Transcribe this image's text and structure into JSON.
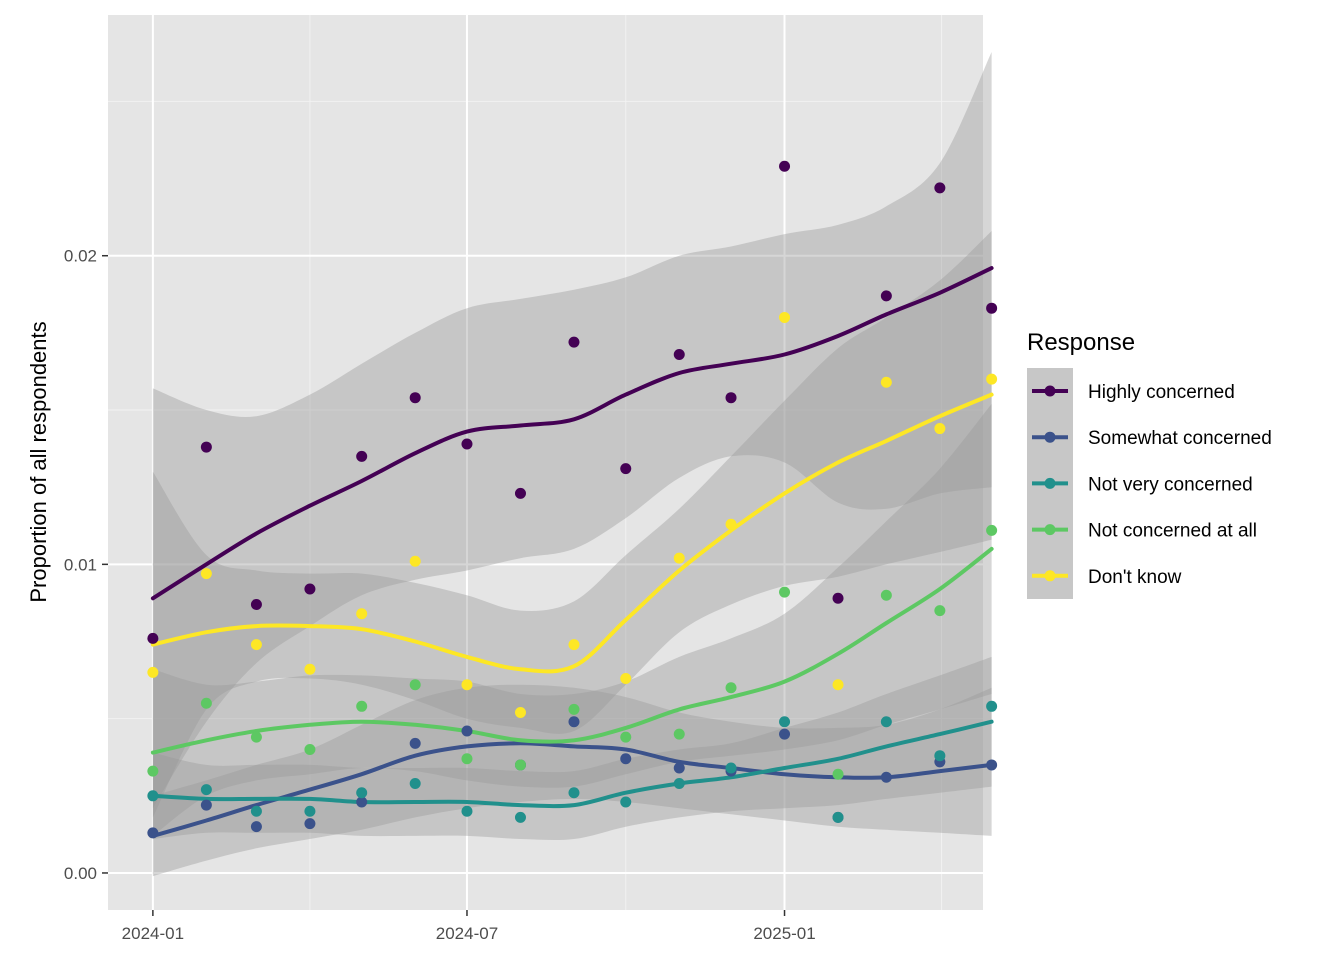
{
  "chart_data": {
    "type": "scatter",
    "title": "",
    "xlabel": "",
    "ylabel": "Proportion of all respondents",
    "x_axis": {
      "type": "date",
      "range": [
        "2023-12-06",
        "2025-04-26"
      ],
      "ticks": [
        "2024-01-01",
        "2024-07-01",
        "2025-01-01"
      ],
      "tick_labels": [
        "2024-01",
        "2024-07",
        "2025-01"
      ]
    },
    "y_axis": {
      "range": [
        -0.0012,
        0.0278
      ],
      "ticks": [
        0,
        0.01,
        0.02
      ],
      "tick_labels": [
        "0.00",
        "0.01",
        "0.02"
      ]
    },
    "grid": true,
    "panel_background": "#e5e5e5",
    "band_color": "#999999",
    "legend": {
      "title": "Response",
      "placement": "right"
    },
    "x": [
      "2024-01-01",
      "2024-02-01",
      "2024-03-01",
      "2024-04-01",
      "2024-05-01",
      "2024-06-01",
      "2024-07-01",
      "2024-08-01",
      "2024-09-01",
      "2024-10-01",
      "2024-11-01",
      "2024-12-01",
      "2025-01-01",
      "2025-02-01",
      "2025-03-01",
      "2025-04-01",
      "2025-05-01"
    ],
    "series": [
      {
        "name": "Highly concerned",
        "color": "#440154",
        "points": [
          0.0076,
          0.0138,
          0.0087,
          0.0092,
          0.0135,
          0.0154,
          0.0139,
          0.0123,
          0.0172,
          0.0131,
          0.0168,
          0.0154,
          0.0229,
          0.0089,
          0.0187,
          0.0222,
          0.0183
        ],
        "smooth": [
          0.0089,
          0.01,
          0.011,
          0.0119,
          0.0127,
          0.0136,
          0.0143,
          0.0145,
          0.0147,
          0.0155,
          0.0162,
          0.0165,
          0.0168,
          0.0174,
          0.0181,
          0.0188,
          0.0196
        ],
        "ci_lower": [
          0.0021,
          0.0049,
          0.0068,
          0.008,
          0.009,
          0.0095,
          0.0098,
          0.0102,
          0.0105,
          0.0115,
          0.0128,
          0.0135,
          0.0133,
          0.012,
          0.0118,
          0.0123,
          0.0125
        ],
        "ci_upper": [
          0.0157,
          0.015,
          0.0148,
          0.0155,
          0.0165,
          0.0175,
          0.0183,
          0.0186,
          0.0189,
          0.0193,
          0.02,
          0.0203,
          0.0207,
          0.021,
          0.0216,
          0.023,
          0.0266
        ]
      },
      {
        "name": "Somewhat concerned",
        "color": "#3b528b",
        "points": [
          0.0013,
          0.0022,
          0.0015,
          0.0016,
          0.0023,
          0.0042,
          0.0046,
          0.0035,
          0.0049,
          0.0037,
          0.0034,
          0.0033,
          0.0045,
          0.0018,
          0.0031,
          0.0036,
          0.0035
        ],
        "smooth": [
          0.0012,
          0.0017,
          0.0022,
          0.0027,
          0.0032,
          0.0038,
          0.0041,
          0.0042,
          0.0041,
          0.004,
          0.0036,
          0.0034,
          0.0032,
          0.0031,
          0.0031,
          0.0033,
          0.0035
        ],
        "ci_lower": [
          -0.0001,
          0.0004,
          0.0008,
          0.0011,
          0.0014,
          0.0018,
          0.0021,
          0.0023,
          0.0024,
          0.0023,
          0.0021,
          0.0019,
          0.0017,
          0.0015,
          0.0014,
          0.0013,
          0.0012
        ],
        "ci_upper": [
          0.0025,
          0.003,
          0.0035,
          0.004,
          0.0048,
          0.0056,
          0.006,
          0.0061,
          0.006,
          0.0057,
          0.0052,
          0.0049,
          0.0047,
          0.0047,
          0.0048,
          0.0053,
          0.006
        ]
      },
      {
        "name": "Not very concerned",
        "color": "#21908c",
        "points": [
          0.0025,
          0.0027,
          0.002,
          0.002,
          0.0026,
          0.0029,
          0.002,
          0.0018,
          0.0026,
          0.0023,
          0.0029,
          0.0034,
          0.0049,
          0.0018,
          0.0049,
          0.0038,
          0.0054
        ],
        "smooth": [
          0.0025,
          0.0024,
          0.0024,
          0.0024,
          0.0023,
          0.0023,
          0.0023,
          0.0022,
          0.0022,
          0.0026,
          0.0029,
          0.0031,
          0.0034,
          0.0037,
          0.0041,
          0.0045,
          0.0049
        ],
        "ci_lower": [
          0.0011,
          0.0013,
          0.0013,
          0.0013,
          0.0012,
          0.0012,
          0.0012,
          0.0011,
          0.0011,
          0.0015,
          0.0018,
          0.002,
          0.0021,
          0.0022,
          0.0024,
          0.0026,
          0.0028
        ],
        "ci_upper": [
          0.0039,
          0.0035,
          0.0035,
          0.0035,
          0.0034,
          0.0034,
          0.0034,
          0.0033,
          0.0033,
          0.0037,
          0.004,
          0.0042,
          0.0047,
          0.0052,
          0.0058,
          0.0064,
          0.007
        ]
      },
      {
        "name": "Not concerned at all",
        "color": "#5dc863",
        "points": [
          0.0033,
          0.0055,
          0.0044,
          0.004,
          0.0054,
          0.0061,
          0.0037,
          0.0035,
          0.0053,
          0.0044,
          0.0045,
          0.006,
          0.0091,
          0.0032,
          0.009,
          0.0085,
          0.0111
        ],
        "smooth": [
          0.0039,
          0.0043,
          0.0046,
          0.0048,
          0.0049,
          0.0048,
          0.0046,
          0.0043,
          0.0043,
          0.0047,
          0.0053,
          0.0057,
          0.0062,
          0.0071,
          0.0081,
          0.0092,
          0.0105
        ],
        "ci_lower": [
          0.0012,
          0.0025,
          0.003,
          0.0032,
          0.0034,
          0.0033,
          0.003,
          0.0028,
          0.0028,
          0.0032,
          0.0036,
          0.0038,
          0.004,
          0.0043,
          0.0048,
          0.0053,
          0.0058
        ],
        "ci_upper": [
          0.0066,
          0.0061,
          0.0062,
          0.0064,
          0.0064,
          0.0063,
          0.0062,
          0.0058,
          0.0058,
          0.0062,
          0.007,
          0.0076,
          0.0084,
          0.0099,
          0.0114,
          0.0131,
          0.0152
        ]
      },
      {
        "name": "Don't know",
        "color": "#fde725",
        "points": [
          0.0065,
          0.0097,
          0.0074,
          0.0066,
          0.0084,
          0.0101,
          0.0061,
          0.0052,
          0.0074,
          0.0063,
          0.0102,
          0.0113,
          0.018,
          0.0061,
          0.0159,
          0.0144,
          0.016
        ],
        "smooth": [
          0.0074,
          0.0078,
          0.008,
          0.008,
          0.0079,
          0.0075,
          0.007,
          0.0066,
          0.0067,
          0.0082,
          0.0098,
          0.0111,
          0.0123,
          0.0133,
          0.014,
          0.0148,
          0.0155
        ],
        "ci_lower": [
          0.0018,
          0.0053,
          0.0062,
          0.0063,
          0.0061,
          0.0056,
          0.005,
          0.0047,
          0.0046,
          0.0061,
          0.0078,
          0.0087,
          0.0093,
          0.0096,
          0.01,
          0.0104,
          0.0108
        ],
        "ci_upper": [
          0.013,
          0.0103,
          0.0098,
          0.0097,
          0.0097,
          0.0094,
          0.009,
          0.0085,
          0.0088,
          0.0103,
          0.0118,
          0.0135,
          0.0153,
          0.017,
          0.018,
          0.0192,
          0.0208
        ]
      }
    ]
  }
}
